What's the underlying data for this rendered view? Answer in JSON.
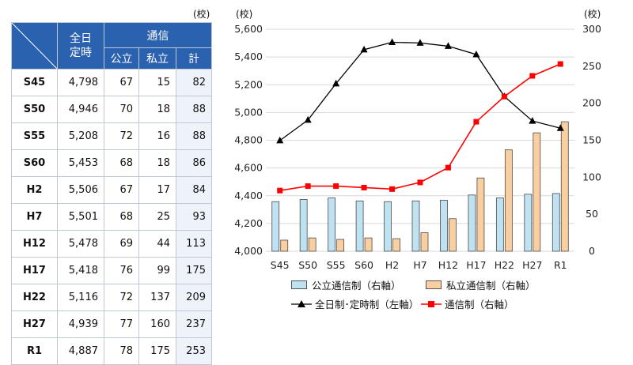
{
  "table": {
    "unit": "(校)",
    "header": {
      "full_time": "全日\n定時",
      "correspondence": "通信",
      "public": "公立",
      "private": "私立",
      "total": "計"
    },
    "rows": [
      {
        "era": "S45",
        "full_time": "4,798",
        "public": "67",
        "private": "15",
        "total": "82"
      },
      {
        "era": "S50",
        "full_time": "4,946",
        "public": "70",
        "private": "18",
        "total": "88"
      },
      {
        "era": "S55",
        "full_time": "5,208",
        "public": "72",
        "private": "16",
        "total": "88"
      },
      {
        "era": "S60",
        "full_time": "5,453",
        "public": "68",
        "private": "18",
        "total": "86"
      },
      {
        "era": "H2",
        "full_time": "5,506",
        "public": "67",
        "private": "17",
        "total": "84"
      },
      {
        "era": "H7",
        "full_time": "5,501",
        "public": "68",
        "private": "25",
        "total": "93"
      },
      {
        "era": "H12",
        "full_time": "5,478",
        "public": "69",
        "private": "44",
        "total": "113"
      },
      {
        "era": "H17",
        "full_time": "5,418",
        "public": "76",
        "private": "99",
        "total": "175"
      },
      {
        "era": "H22",
        "full_time": "5,116",
        "public": "72",
        "private": "137",
        "total": "209"
      },
      {
        "era": "H27",
        "full_time": "4,939",
        "public": "77",
        "private": "160",
        "total": "237"
      },
      {
        "era": "R1",
        "full_time": "4,887",
        "public": "78",
        "private": "175",
        "total": "253"
      }
    ]
  },
  "chart_data": {
    "type": "bar",
    "categories": [
      "S45",
      "S50",
      "S55",
      "S60",
      "H2",
      "H7",
      "H12",
      "H17",
      "H22",
      "H27",
      "R1"
    ],
    "left_axis": {
      "unit": "(校)",
      "ylim": [
        4000,
        5600
      ],
      "ticks": [
        "4,000",
        "4,200",
        "4,400",
        "4,600",
        "4,800",
        "5,000",
        "5,200",
        "5,400",
        "5,600"
      ]
    },
    "right_axis": {
      "unit": "(校)",
      "ylim": [
        0,
        300
      ],
      "ticks": [
        "0",
        "50",
        "100",
        "150",
        "200",
        "250",
        "300"
      ]
    },
    "series": [
      {
        "name": "公立通信制（右軸）",
        "type": "bar",
        "axis": "right",
        "values": [
          67,
          70,
          72,
          68,
          67,
          68,
          69,
          76,
          72,
          77,
          78
        ]
      },
      {
        "name": "私立通信制（右軸）",
        "type": "bar",
        "axis": "right",
        "values": [
          15,
          18,
          16,
          18,
          17,
          25,
          44,
          99,
          137,
          160,
          175
        ]
      },
      {
        "name": "全日制･定時制（左軸）",
        "type": "line",
        "axis": "left",
        "values": [
          4798,
          4946,
          5208,
          5453,
          5506,
          5501,
          5478,
          5418,
          5116,
          4939,
          4887
        ]
      },
      {
        "name": "通信制（右軸）",
        "type": "line",
        "axis": "right",
        "values": [
          82,
          88,
          88,
          86,
          84,
          93,
          113,
          175,
          209,
          237,
          253
        ]
      }
    ],
    "colors": {
      "public": "#bfe2f3",
      "private": "#f9cf9f",
      "full_time": "#000000",
      "correspondence": "#ff0000",
      "grid": "#d9d9d9"
    },
    "grid": true,
    "legend": "bottom"
  }
}
